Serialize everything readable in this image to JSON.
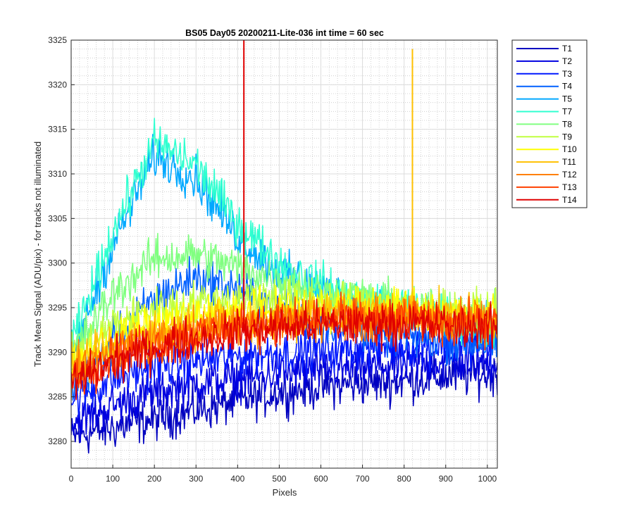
{
  "chart_data": {
    "type": "line",
    "title": "BS05 Day05 20200211-Lite-036 int time = 60 sec",
    "xlabel": "Pixels",
    "ylabel": "Track Mean Signal (ADU/pix) - for tracks not illuminated",
    "xlim": [
      0,
      1024
    ],
    "ylim": [
      3277,
      3325
    ],
    "xticks": [
      "0",
      "100",
      "200",
      "300",
      "400",
      "500",
      "600",
      "700",
      "800",
      "900",
      "1000"
    ],
    "yticks": [
      "3280",
      "3285",
      "3290",
      "3295",
      "3300",
      "3305",
      "3310",
      "3315",
      "3320",
      "3325"
    ],
    "grid": "on (major and minor)",
    "legend_position": "outside-right",
    "series": [
      {
        "name": "T1",
        "color": "#0000c0",
        "points": [
          [
            0,
            3280.5
          ],
          [
            100,
            3281.5
          ],
          [
            200,
            3282.5
          ],
          [
            300,
            3283.5
          ],
          [
            400,
            3284.5
          ],
          [
            500,
            3285.5
          ],
          [
            600,
            3286.2
          ],
          [
            700,
            3286.5
          ],
          [
            800,
            3286.8
          ],
          [
            900,
            3287.3
          ],
          [
            1024,
            3287.6
          ]
        ]
      },
      {
        "name": "T2",
        "color": "#0000e0",
        "points": [
          [
            0,
            3282.0
          ],
          [
            100,
            3284.0
          ],
          [
            200,
            3285.5
          ],
          [
            300,
            3286.5
          ],
          [
            400,
            3287.0
          ],
          [
            500,
            3287.6
          ],
          [
            600,
            3288.0
          ],
          [
            700,
            3288.3
          ],
          [
            800,
            3288.6
          ],
          [
            900,
            3288.9
          ],
          [
            1024,
            3289.0
          ]
        ]
      },
      {
        "name": "T3",
        "color": "#0018ff",
        "points": [
          [
            0,
            3284.5
          ],
          [
            100,
            3287.0
          ],
          [
            200,
            3288.5
          ],
          [
            300,
            3289.0
          ],
          [
            400,
            3289.6
          ],
          [
            500,
            3290.0
          ],
          [
            600,
            3290.3
          ],
          [
            700,
            3290.6
          ],
          [
            800,
            3290.8
          ],
          [
            900,
            3290.9
          ],
          [
            1024,
            3291.0
          ]
        ]
      },
      {
        "name": "T4",
        "color": "#0060ff",
        "points": [
          [
            0,
            3286.0
          ],
          [
            100,
            3291.0
          ],
          [
            200,
            3296.0
          ],
          [
            300,
            3298.5
          ],
          [
            400,
            3297.0
          ],
          [
            500,
            3295.0
          ],
          [
            600,
            3293.5
          ],
          [
            700,
            3292.5
          ],
          [
            800,
            3291.8
          ],
          [
            900,
            3291.3
          ],
          [
            1024,
            3291.0
          ]
        ]
      },
      {
        "name": "T5",
        "color": "#00a8ff",
        "points": [
          [
            0,
            3289.0
          ],
          [
            100,
            3302.0
          ],
          [
            200,
            3312.0
          ],
          [
            300,
            3309.5
          ],
          [
            400,
            3303.0
          ],
          [
            500,
            3299.0
          ],
          [
            600,
            3297.0
          ],
          [
            700,
            3295.5
          ],
          [
            800,
            3294.5
          ],
          [
            900,
            3293.5
          ],
          [
            1024,
            3292.5
          ]
        ]
      },
      {
        "name": "T7",
        "color": "#30ffd0",
        "points": [
          [
            0,
            3290.5
          ],
          [
            100,
            3303.5
          ],
          [
            200,
            3313.5
          ],
          [
            300,
            3311.0
          ],
          [
            400,
            3304.5
          ],
          [
            500,
            3300.0
          ],
          [
            600,
            3297.5
          ],
          [
            700,
            3296.0
          ],
          [
            800,
            3295.0
          ],
          [
            900,
            3294.0
          ],
          [
            1024,
            3293.0
          ]
        ]
      },
      {
        "name": "T8",
        "color": "#80ff80",
        "points": [
          [
            0,
            3289.5
          ],
          [
            100,
            3296.5
          ],
          [
            200,
            3300.5
          ],
          [
            300,
            3301.0
          ],
          [
            400,
            3299.5
          ],
          [
            500,
            3298.0
          ],
          [
            600,
            3296.8
          ],
          [
            700,
            3296.0
          ],
          [
            800,
            3295.2
          ],
          [
            900,
            3294.6
          ],
          [
            1024,
            3294.0
          ]
        ]
      },
      {
        "name": "T9",
        "color": "#c0ff40",
        "points": [
          [
            0,
            3289.0
          ],
          [
            100,
            3293.0
          ],
          [
            200,
            3294.8
          ],
          [
            300,
            3295.5
          ],
          [
            400,
            3296.0
          ],
          [
            500,
            3296.2
          ],
          [
            600,
            3296.0
          ],
          [
            700,
            3295.5
          ],
          [
            800,
            3295.0
          ],
          [
            900,
            3294.5
          ],
          [
            1024,
            3294.0
          ]
        ]
      },
      {
        "name": "T10",
        "color": "#ffff00",
        "points": [
          [
            0,
            3288.5
          ],
          [
            100,
            3291.5
          ],
          [
            200,
            3293.0
          ],
          [
            300,
            3294.0
          ],
          [
            400,
            3294.5
          ],
          [
            500,
            3294.8
          ],
          [
            600,
            3295.0
          ],
          [
            700,
            3295.0
          ],
          [
            800,
            3294.8
          ],
          [
            900,
            3294.5
          ],
          [
            1024,
            3294.2
          ]
        ]
      },
      {
        "name": "T11",
        "color": "#ffc000",
        "points": [
          [
            0,
            3288.0
          ],
          [
            100,
            3290.5
          ],
          [
            200,
            3292.0
          ],
          [
            300,
            3293.0
          ],
          [
            400,
            3293.6
          ],
          [
            500,
            3294.0
          ],
          [
            600,
            3294.2
          ],
          [
            700,
            3294.3
          ],
          [
            800,
            3294.2
          ],
          [
            900,
            3294.0
          ],
          [
            1024,
            3293.8
          ]
        ],
        "spike": {
          "x": 820,
          "y": 3324
        }
      },
      {
        "name": "T12",
        "color": "#ff8000",
        "points": [
          [
            0,
            3287.5
          ],
          [
            100,
            3290.0
          ],
          [
            200,
            3291.5
          ],
          [
            300,
            3292.5
          ],
          [
            400,
            3293.2
          ],
          [
            500,
            3293.6
          ],
          [
            600,
            3293.8
          ],
          [
            700,
            3293.9
          ],
          [
            800,
            3293.9
          ],
          [
            900,
            3293.7
          ],
          [
            1024,
            3293.5
          ]
        ]
      },
      {
        "name": "T13",
        "color": "#ff4000",
        "points": [
          [
            0,
            3287.0
          ],
          [
            100,
            3289.5
          ],
          [
            200,
            3291.0
          ],
          [
            300,
            3292.0
          ],
          [
            400,
            3292.8
          ],
          [
            500,
            3293.2
          ],
          [
            600,
            3293.5
          ],
          [
            700,
            3293.6
          ],
          [
            800,
            3293.6
          ],
          [
            900,
            3293.4
          ],
          [
            1024,
            3293.2
          ]
        ]
      },
      {
        "name": "T14",
        "color": "#e00000",
        "points": [
          [
            0,
            3286.5
          ],
          [
            100,
            3289.0
          ],
          [
            200,
            3290.5
          ],
          [
            300,
            3291.5
          ],
          [
            400,
            3292.3
          ],
          [
            500,
            3292.8
          ],
          [
            600,
            3293.1
          ],
          [
            700,
            3293.2
          ],
          [
            800,
            3293.2
          ],
          [
            900,
            3293.0
          ],
          [
            1024,
            3292.8
          ]
        ],
        "spike": {
          "x": 415,
          "y": 3325
        }
      }
    ]
  }
}
